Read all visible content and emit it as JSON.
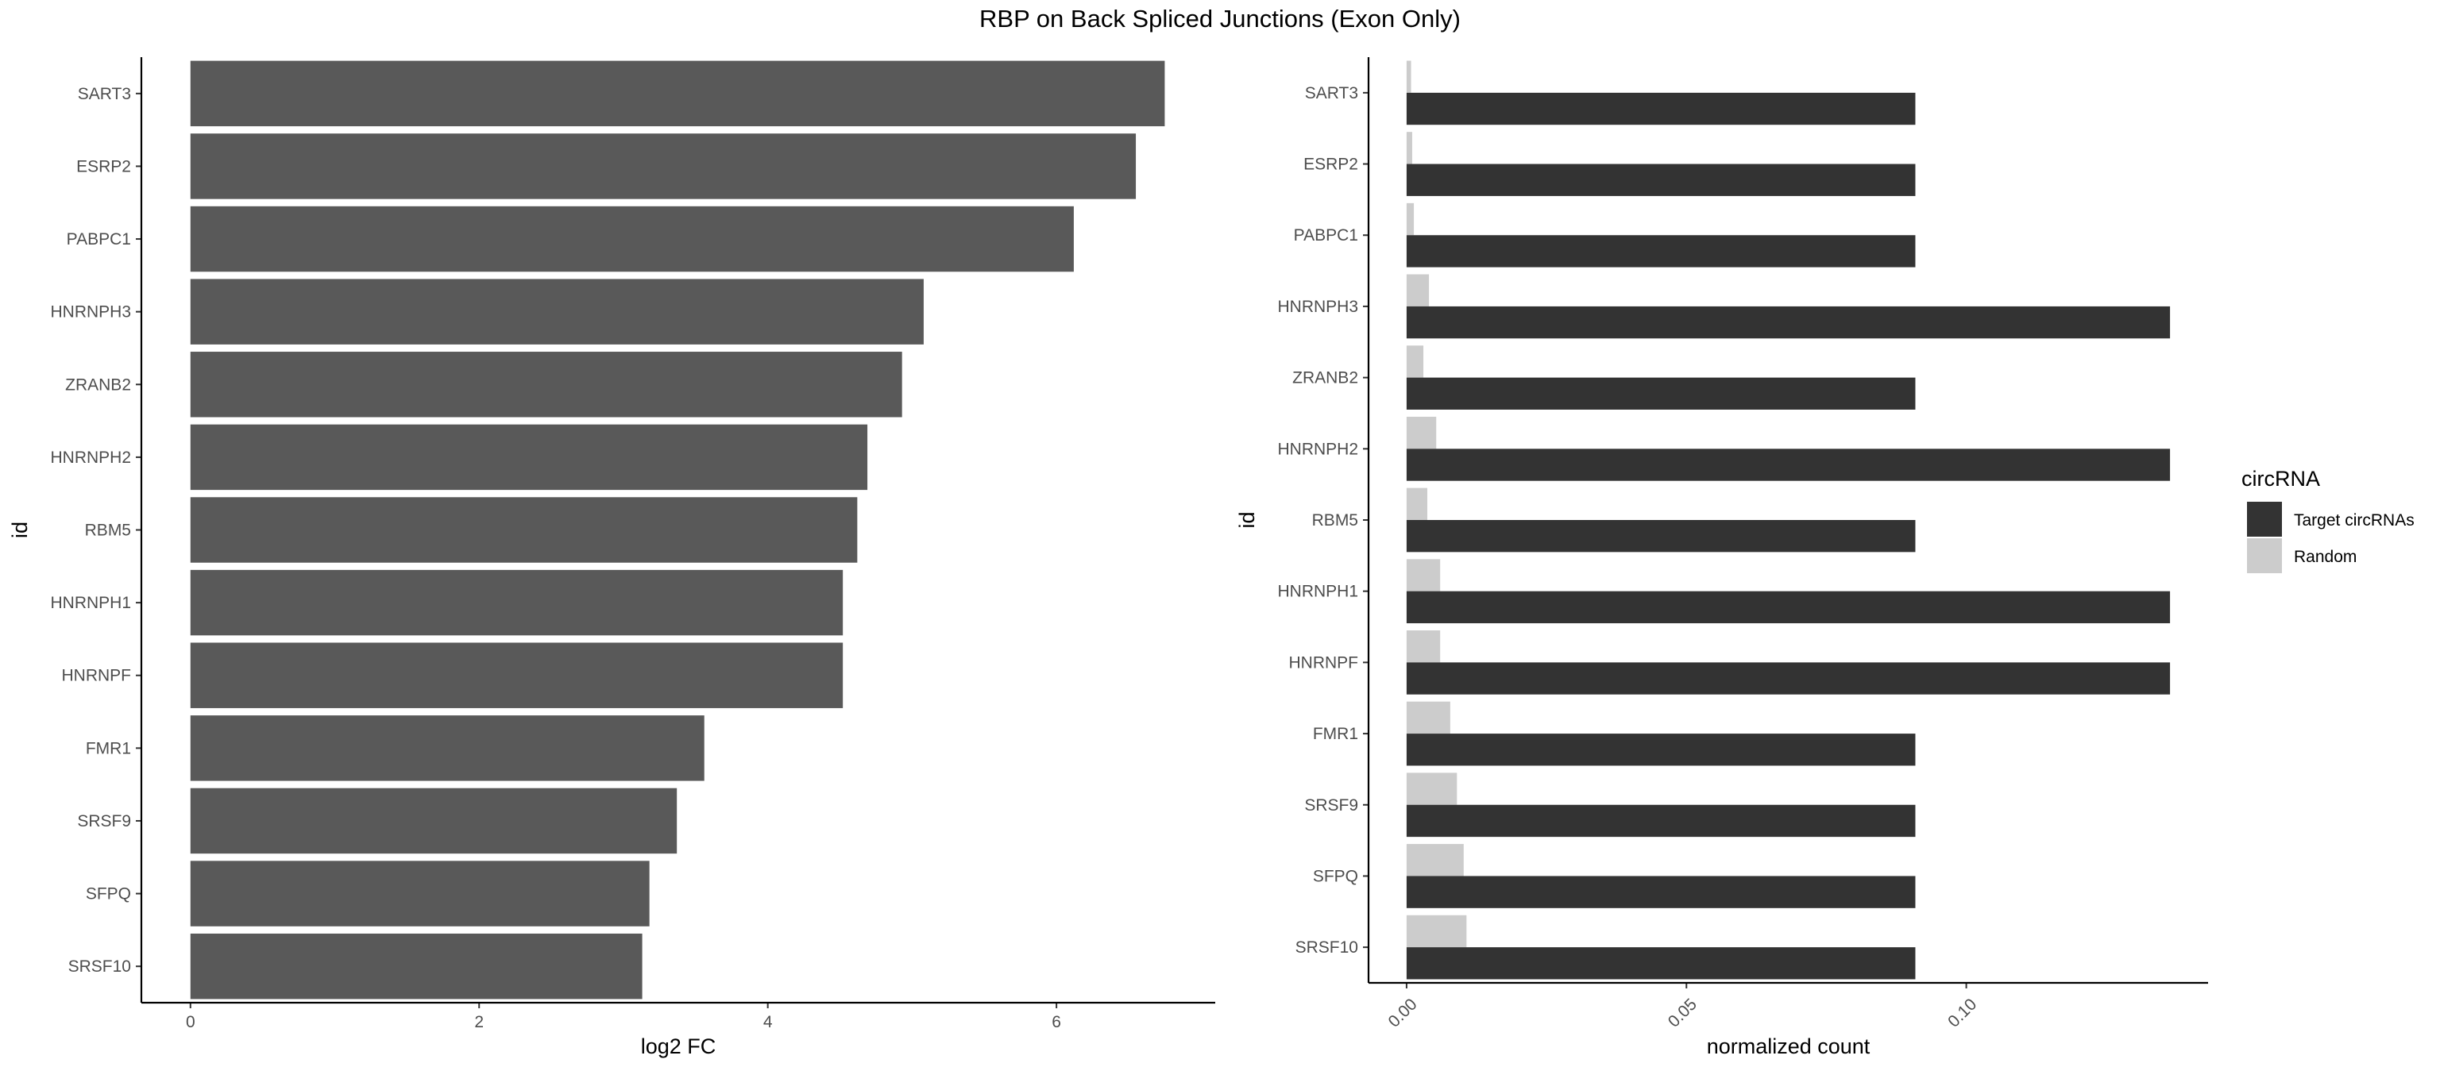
{
  "title": "RBP on Back Spliced Junctions (Exon Only)",
  "colors": {
    "bar_left": "#595959",
    "target": "#333333",
    "random": "#cccccc"
  },
  "chart_data": [
    {
      "type": "bar",
      "orientation": "horizontal",
      "categories": [
        "SART3",
        "ESRP2",
        "PABPC1",
        "HNRNPH3",
        "ZRANB2",
        "HNRNPH2",
        "RBM5",
        "HNRNPH1",
        "HNRNPF",
        "FMR1",
        "SRSF9",
        "SFPQ",
        "SRSF10"
      ],
      "values": [
        6.75,
        6.55,
        6.12,
        5.08,
        4.93,
        4.69,
        4.62,
        4.52,
        4.52,
        3.56,
        3.37,
        3.18,
        3.13
      ],
      "xlabel": "log2 FC",
      "ylabel": "id",
      "xlim": [
        -0.34,
        7.1
      ],
      "xticks": [
        0,
        2,
        4,
        6
      ],
      "grid": false
    },
    {
      "type": "bar",
      "orientation": "horizontal",
      "grouped": true,
      "categories": [
        "SART3",
        "ESRP2",
        "PABPC1",
        "HNRNPH3",
        "ZRANB2",
        "HNRNPH2",
        "RBM5",
        "HNRNPH1",
        "HNRNPF",
        "FMR1",
        "SRSF9",
        "SFPQ",
        "SRSF10"
      ],
      "series": [
        {
          "name": "Target circRNAs",
          "color": "#333333",
          "values": [
            0.0909,
            0.0909,
            0.0909,
            0.1364,
            0.0909,
            0.1364,
            0.0909,
            0.1364,
            0.1364,
            0.0909,
            0.0909,
            0.0909,
            0.0909
          ]
        },
        {
          "name": "Random",
          "color": "#cccccc",
          "values": [
            0.0008,
            0.001,
            0.0013,
            0.004,
            0.003,
            0.0053,
            0.0037,
            0.006,
            0.006,
            0.0078,
            0.009,
            0.0102,
            0.0107
          ]
        }
      ],
      "xlabel": "normalized count",
      "ylabel": "id",
      "xlim": [
        -0.0068,
        0.1432
      ],
      "xticks": [
        0.0,
        0.05,
        0.1
      ],
      "xtick_labels": [
        "0.00",
        "0.05",
        "0.10"
      ],
      "xtick_rotation": 45,
      "grid": false,
      "legend": {
        "title": "circRNA",
        "placement": "right",
        "entries": [
          "Target circRNAs",
          "Random"
        ]
      }
    }
  ]
}
